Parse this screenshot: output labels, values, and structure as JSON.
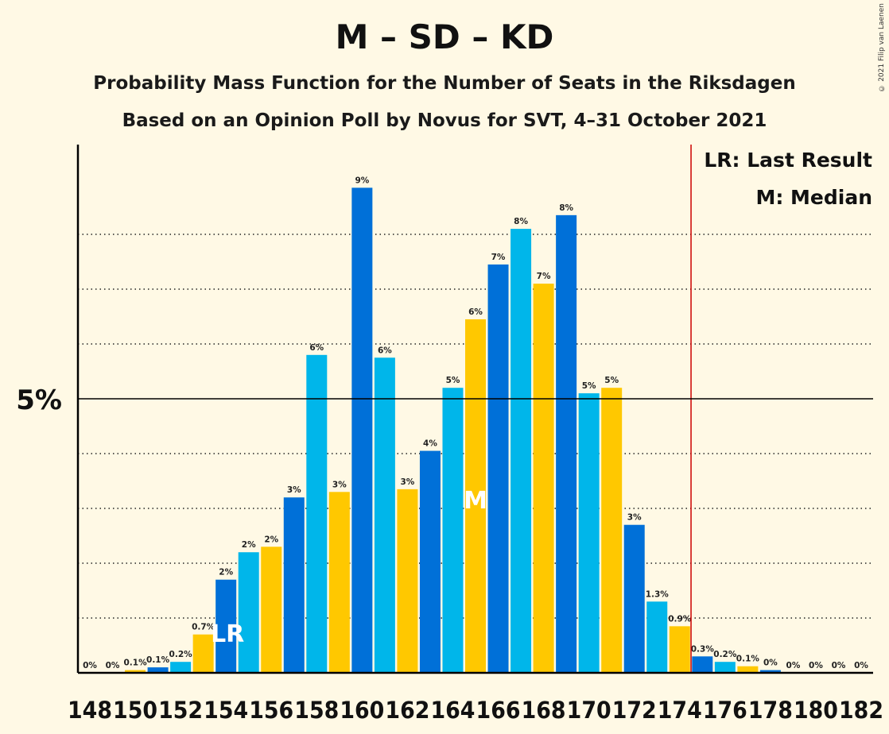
{
  "title": "M – SD – KD",
  "subtitle1": "Probability Mass Function for the Number of Seats in the Riksdagen",
  "subtitle2": "Based on an Opinion Poll by Novus for SVT, 4–31 October 2021",
  "copyright": "© 2021 Filip van Laenen",
  "legend": {
    "lr": "LR: Last Result",
    "m": "M: Median"
  },
  "markers": {
    "lr_text": "LR",
    "m_text": "M"
  },
  "colors": {
    "background": "#FFF9E5",
    "blue": "#0070D8",
    "cyan": "#00B6EA",
    "yellow": "#FFC800",
    "majority_line": "#CC0000"
  },
  "chart_data": {
    "type": "bar",
    "x": [
      148,
      149,
      150,
      151,
      152,
      153,
      154,
      155,
      156,
      157,
      158,
      159,
      160,
      161,
      162,
      163,
      164,
      165,
      166,
      167,
      168,
      169,
      170,
      171,
      172,
      173,
      174,
      175,
      176,
      177,
      178,
      179,
      180,
      181,
      182
    ],
    "values": [
      0,
      0,
      0.05,
      0.1,
      0.2,
      0.7,
      1.7,
      2.2,
      2.3,
      3.2,
      5.8,
      3.3,
      8.85,
      5.75,
      3.35,
      4.05,
      5.2,
      6.45,
      7.45,
      8.1,
      7.1,
      8.35,
      5.1,
      5.2,
      2.7,
      1.3,
      0.85,
      0.3,
      0.2,
      0.12,
      0.05,
      0,
      0,
      0,
      0
    ],
    "labels": [
      "0%",
      "0%",
      "0.1%",
      "0.1%",
      "0.2%",
      "0.7%",
      "2%",
      "2%",
      "2%",
      "3%",
      "6%",
      "3%",
      "9%",
      "6%",
      "3%",
      "4%",
      "5%",
      "6%",
      "7%",
      "8%",
      "7%",
      "8%",
      "5%",
      "5%",
      "3%",
      "1.3%",
      "0.9%",
      "0.3%",
      "0.2%",
      "0.1%",
      "0%",
      "0%",
      "0%",
      "0%",
      "0%"
    ],
    "color_cycle": [
      "blue",
      "cyan",
      "yellow"
    ],
    "x_tick_labels": [
      "148",
      "150",
      "152",
      "154",
      "156",
      "158",
      "160",
      "162",
      "164",
      "166",
      "168",
      "170",
      "172",
      "174",
      "176",
      "178",
      "180",
      "182"
    ],
    "y_tick_label": "5%",
    "y_tick_value": 5,
    "ylim": [
      0,
      9.6
    ],
    "gridlines": [
      1,
      2,
      3,
      4,
      6,
      7,
      8
    ],
    "last_result": 154,
    "median": 165,
    "majority_line_after": 174.5
  }
}
